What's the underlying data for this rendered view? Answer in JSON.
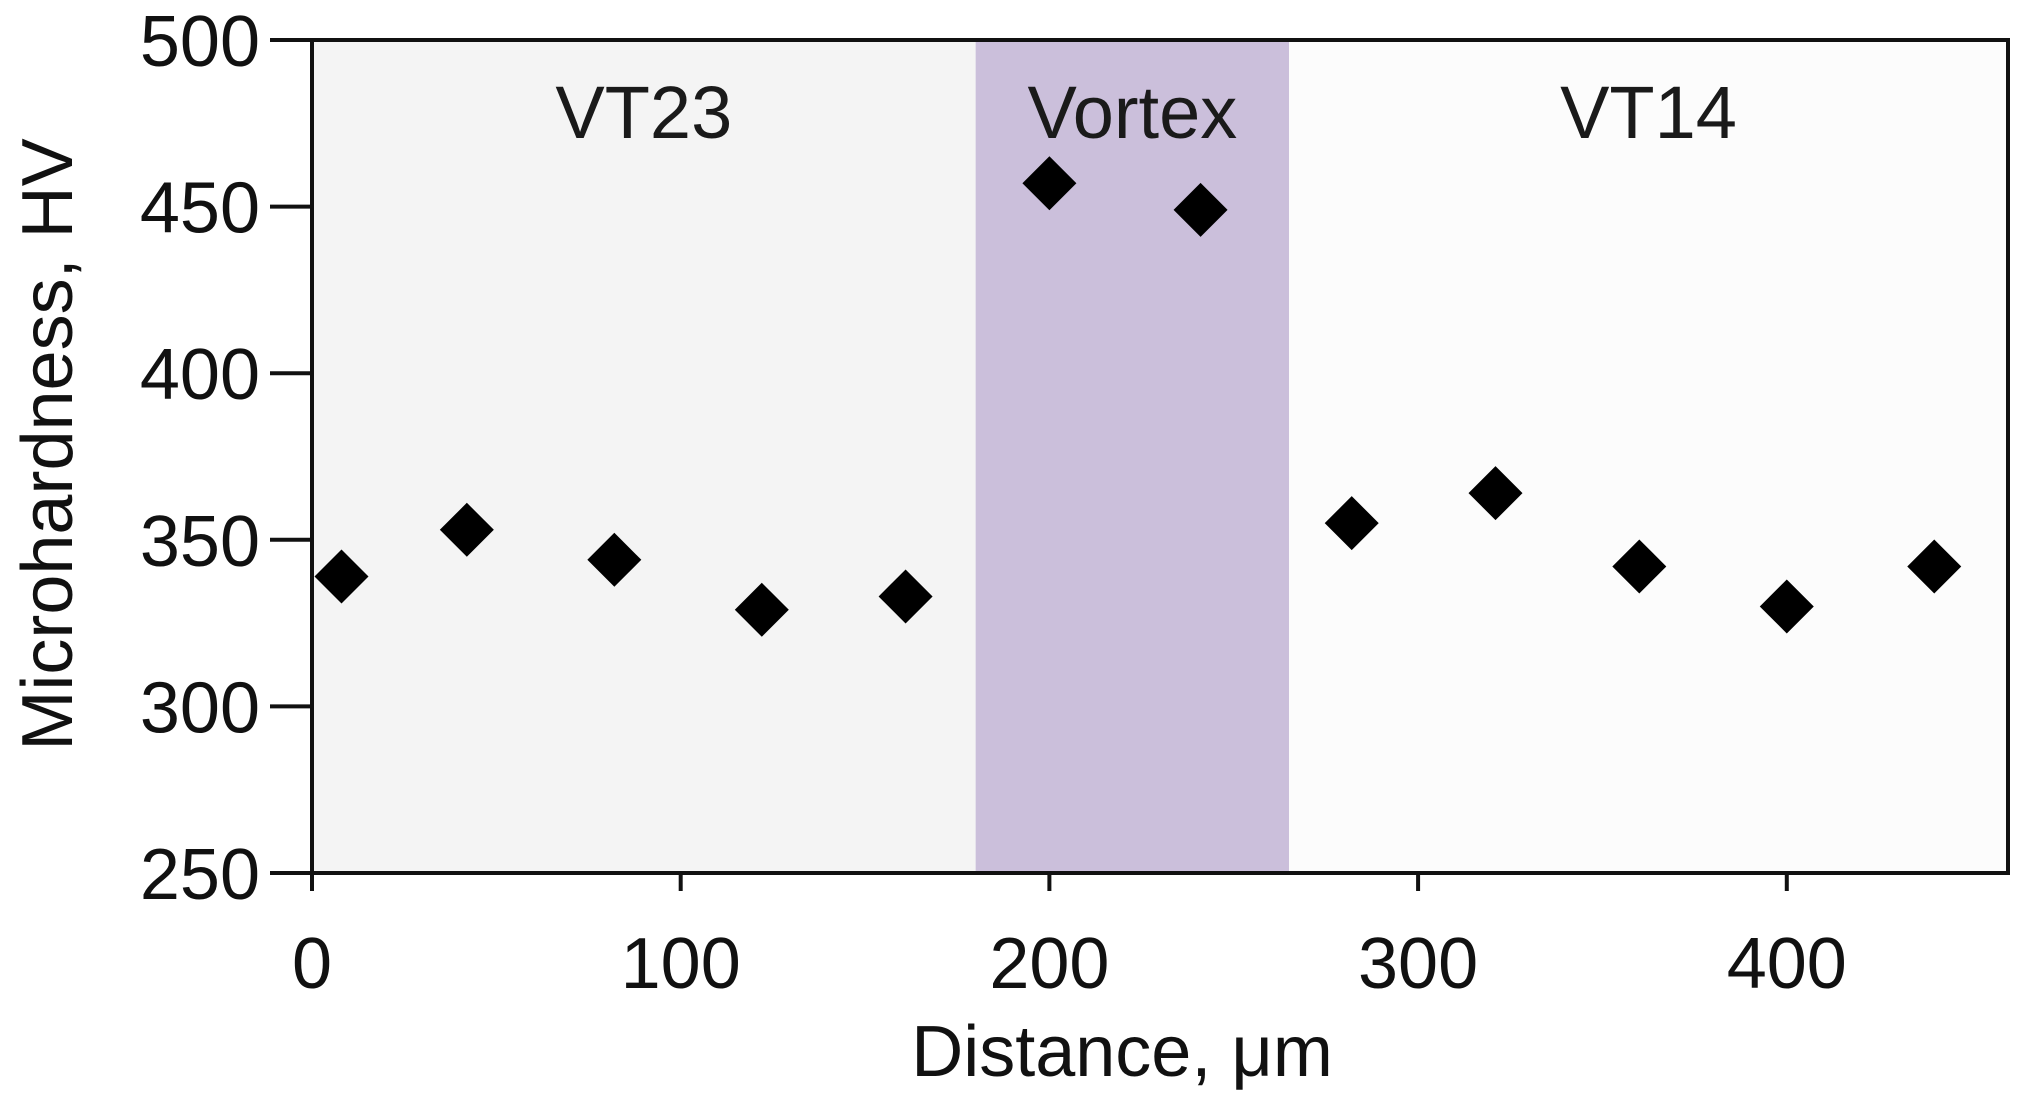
{
  "chart_data": {
    "type": "scatter",
    "xlabel": "Distance, μm",
    "ylabel": "Microhardness, HV",
    "xlim": [
      0,
      460
    ],
    "ylim": [
      250,
      500
    ],
    "x_ticks": [
      0,
      100,
      200,
      300,
      400
    ],
    "y_ticks": [
      250,
      300,
      350,
      400,
      450,
      500
    ],
    "grid": false,
    "marker": "diamond",
    "marker_color": "#000000",
    "regions": [
      {
        "label": "VT23",
        "x_start": 0,
        "x_end": 180,
        "color": "#f4f4f4"
      },
      {
        "label": "Vortex",
        "x_start": 180,
        "x_end": 265,
        "color": "#cbbfdb"
      },
      {
        "label": "VT14",
        "x_start": 265,
        "x_end": 460,
        "color": "#fcfcfc"
      }
    ],
    "series": [
      {
        "points": [
          {
            "x": 8,
            "y": 339
          },
          {
            "x": 42,
            "y": 353
          },
          {
            "x": 82,
            "y": 344
          },
          {
            "x": 122,
            "y": 329
          },
          {
            "x": 161,
            "y": 333
          },
          {
            "x": 200,
            "y": 457
          },
          {
            "x": 241,
            "y": 449
          },
          {
            "x": 282,
            "y": 355
          },
          {
            "x": 321,
            "y": 364
          },
          {
            "x": 360,
            "y": 342
          },
          {
            "x": 400,
            "y": 330
          },
          {
            "x": 440,
            "y": 342
          }
        ]
      }
    ]
  }
}
